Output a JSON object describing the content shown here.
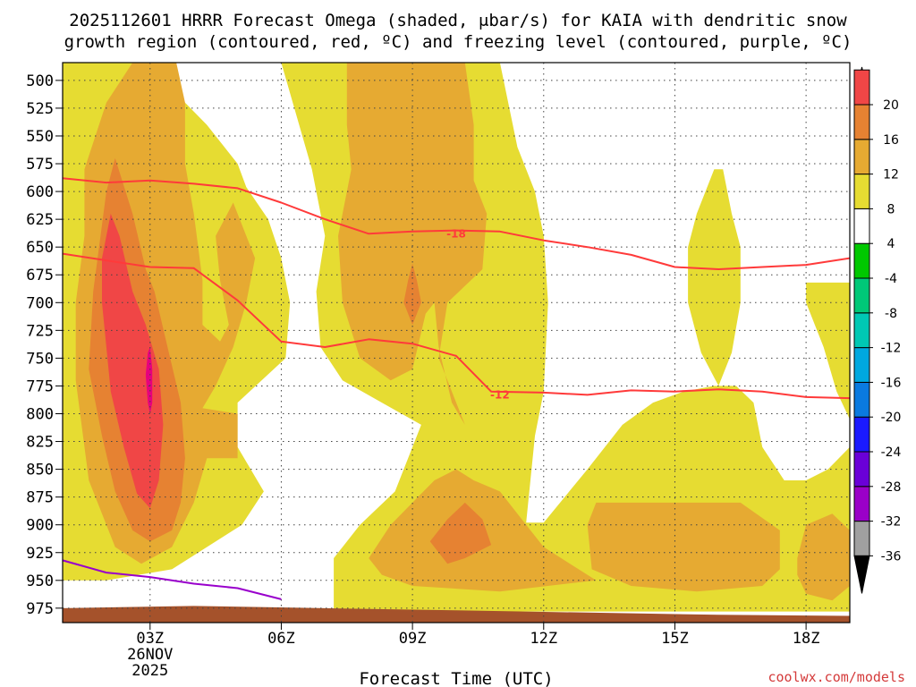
{
  "chart_data": {
    "type": "heatmap",
    "title_line1": "2025112601 HRRR Forecast Omega (shaded, ",
    "title_mu": "μ",
    "title_line1_end": "bar/s) for KAIA with dendritic snow",
    "title_line2": "growth region (contoured, red, ºC) and freezing level (contoured, purple, ºC)",
    "xlabel": "Forecast Time (UTC)",
    "x_ticks": [
      {
        "value": 3,
        "label": "03Z",
        "sub1": "26NOV",
        "sub2": "2025"
      },
      {
        "value": 6,
        "label": "06Z"
      },
      {
        "value": 9,
        "label": "09Z"
      },
      {
        "value": 12,
        "label": "12Z"
      },
      {
        "value": 15,
        "label": "15Z"
      },
      {
        "value": 18,
        "label": "18Z"
      }
    ],
    "xlim": [
      1,
      19
    ],
    "ylim": [
      988,
      484
    ],
    "y_ticks": [
      500,
      525,
      550,
      575,
      600,
      625,
      650,
      675,
      700,
      725,
      750,
      775,
      800,
      825,
      850,
      875,
      900,
      925,
      950,
      975
    ],
    "grid": true,
    "colorbar": {
      "levels": [
        -36,
        -32,
        -28,
        -24,
        -20,
        -16,
        -12,
        -8,
        -4,
        4,
        8,
        12,
        16,
        20
      ],
      "colors": [
        "#a0a0a0",
        "#9a00c8",
        "#6a00d8",
        "#1a1aff",
        "#0a7ae0",
        "#00a8e0",
        "#00c8b4",
        "#00c878",
        "#00c800",
        "#ffffff",
        "#e6dc32",
        "#e6aa32",
        "#e68232",
        "#f04646"
      ],
      "over_color": "#e6007e",
      "under_color": "#000000"
    },
    "omega_colors": {
      "4": "#e6dc32",
      "8": "#e6aa32",
      "12": "#e68232",
      "16": "#f04646",
      "20": "#e6007e"
    },
    "omega_regions": [
      {
        "level": 4,
        "points": [
          [
            1.0,
            484
          ],
          [
            2.9,
            484
          ],
          [
            4.3,
            540
          ],
          [
            5.0,
            575
          ],
          [
            5.2,
            596
          ],
          [
            5.7,
            625
          ],
          [
            6.0,
            660
          ],
          [
            6.2,
            700
          ],
          [
            6.1,
            750
          ],
          [
            5.0,
            790
          ],
          [
            5.0,
            830
          ],
          [
            5.6,
            870
          ],
          [
            5.1,
            900
          ],
          [
            3.5,
            940
          ],
          [
            2.0,
            950
          ],
          [
            1.0,
            950
          ]
        ]
      },
      {
        "level": 4,
        "points": [
          [
            6.0,
            484
          ],
          [
            11.0,
            484
          ],
          [
            11.4,
            560
          ],
          [
            11.8,
            600
          ],
          [
            12.0,
            640
          ],
          [
            12.1,
            700
          ],
          [
            12.0,
            780
          ],
          [
            11.8,
            820
          ],
          [
            11.6,
            898
          ],
          [
            12.0,
            898
          ],
          [
            13.0,
            850
          ],
          [
            13.8,
            810
          ],
          [
            14.5,
            790
          ],
          [
            15.2,
            780
          ],
          [
            15.9,
            775
          ],
          [
            16.4,
            775
          ],
          [
            16.8,
            790
          ],
          [
            17.0,
            830
          ],
          [
            17.5,
            860
          ],
          [
            18.0,
            860
          ],
          [
            18.5,
            850
          ],
          [
            19.0,
            830
          ],
          [
            19.0,
            978
          ],
          [
            7.2,
            978
          ],
          [
            7.2,
            930
          ],
          [
            7.8,
            900
          ],
          [
            8.6,
            870
          ],
          [
            9.0,
            830
          ],
          [
            9.2,
            810
          ],
          [
            8.3,
            790
          ],
          [
            7.4,
            770
          ],
          [
            6.9,
            740
          ],
          [
            6.8,
            690
          ],
          [
            7.0,
            640
          ],
          [
            6.7,
            580
          ],
          [
            6.0,
            484
          ]
        ]
      },
      {
        "level": 4,
        "points": [
          [
            15.3,
            650
          ],
          [
            15.5,
            620
          ],
          [
            15.9,
            580
          ],
          [
            16.1,
            580
          ],
          [
            16.3,
            620
          ],
          [
            16.5,
            650
          ],
          [
            16.5,
            700
          ],
          [
            16.3,
            745
          ],
          [
            16.0,
            775
          ],
          [
            15.6,
            745
          ],
          [
            15.3,
            700
          ]
        ]
      },
      {
        "level": 4,
        "points": [
          [
            18.0,
            682
          ],
          [
            19.0,
            682
          ],
          [
            19.0,
            805
          ],
          [
            18.7,
            780
          ],
          [
            18.4,
            740
          ],
          [
            18.0,
            700
          ]
        ]
      },
      {
        "level": 8,
        "points": [
          [
            1.5,
            640
          ],
          [
            1.5,
            580
          ],
          [
            2.0,
            520
          ],
          [
            2.6,
            484
          ],
          [
            3.6,
            484
          ],
          [
            3.8,
            520
          ],
          [
            3.8,
            575
          ],
          [
            4.0,
            620
          ],
          [
            4.2,
            680
          ],
          [
            4.2,
            720
          ],
          [
            4.6,
            735
          ],
          [
            4.8,
            720
          ],
          [
            4.6,
            680
          ],
          [
            4.5,
            640
          ],
          [
            4.9,
            610
          ],
          [
            5.4,
            660
          ],
          [
            5.2,
            700
          ],
          [
            4.9,
            740
          ],
          [
            4.5,
            775
          ],
          [
            4.2,
            795
          ],
          [
            5.0,
            800
          ],
          [
            5.0,
            840
          ],
          [
            4.3,
            840
          ],
          [
            4.0,
            880
          ],
          [
            3.5,
            920
          ],
          [
            2.8,
            935
          ],
          [
            2.2,
            920
          ],
          [
            1.6,
            860
          ],
          [
            1.3,
            770
          ],
          [
            1.3,
            700
          ]
        ]
      },
      {
        "level": 8,
        "points": [
          [
            7.5,
            484
          ],
          [
            10.2,
            484
          ],
          [
            10.4,
            540
          ],
          [
            10.4,
            590
          ],
          [
            10.7,
            620
          ],
          [
            10.6,
            670
          ],
          [
            9.8,
            700
          ],
          [
            9.6,
            750
          ],
          [
            10.0,
            790
          ],
          [
            10.2,
            810
          ],
          [
            9.9,
            790
          ],
          [
            9.6,
            740
          ],
          [
            9.5,
            700
          ],
          [
            9.3,
            710
          ],
          [
            9.0,
            760
          ],
          [
            8.5,
            770
          ],
          [
            7.8,
            750
          ],
          [
            7.4,
            700
          ],
          [
            7.3,
            640
          ],
          [
            7.6,
            580
          ],
          [
            7.5,
            540
          ]
        ]
      },
      {
        "level": 8,
        "points": [
          [
            8.0,
            930
          ],
          [
            8.5,
            900
          ],
          [
            9.0,
            880
          ],
          [
            9.5,
            860
          ],
          [
            10.0,
            850
          ],
          [
            10.4,
            860
          ],
          [
            11.0,
            870
          ],
          [
            11.6,
            900
          ],
          [
            12.0,
            920
          ],
          [
            12.8,
            940
          ],
          [
            13.2,
            950
          ],
          [
            11.0,
            960
          ],
          [
            9.0,
            955
          ],
          [
            8.3,
            945
          ]
        ]
      },
      {
        "level": 8,
        "points": [
          [
            13.1,
            940
          ],
          [
            13.0,
            900
          ],
          [
            13.2,
            880
          ],
          [
            14.5,
            880
          ],
          [
            15.5,
            880
          ],
          [
            16.5,
            880
          ],
          [
            17.4,
            905
          ],
          [
            17.4,
            940
          ],
          [
            17.0,
            955
          ],
          [
            15.5,
            960
          ],
          [
            14.0,
            955
          ]
        ]
      },
      {
        "level": 8,
        "points": [
          [
            17.8,
            930
          ],
          [
            18.0,
            900
          ],
          [
            18.6,
            890
          ],
          [
            19.0,
            905
          ],
          [
            19.0,
            955
          ],
          [
            18.6,
            968
          ],
          [
            18.0,
            962
          ],
          [
            17.8,
            945
          ]
        ]
      },
      {
        "level": 12,
        "points": [
          [
            1.6,
            760
          ],
          [
            1.7,
            690
          ],
          [
            2.0,
            600
          ],
          [
            2.2,
            570
          ],
          [
            2.6,
            620
          ],
          [
            2.9,
            670
          ],
          [
            3.1,
            690
          ],
          [
            3.4,
            740
          ],
          [
            3.7,
            790
          ],
          [
            3.8,
            840
          ],
          [
            3.7,
            880
          ],
          [
            3.5,
            905
          ],
          [
            3.0,
            915
          ],
          [
            2.6,
            905
          ],
          [
            2.2,
            870
          ],
          [
            1.9,
            820
          ]
        ]
      },
      {
        "level": 12,
        "points": [
          [
            8.8,
            700
          ],
          [
            8.9,
            680
          ],
          [
            9.0,
            665
          ],
          [
            9.1,
            680
          ],
          [
            9.2,
            700
          ],
          [
            9.0,
            720
          ]
        ]
      },
      {
        "level": 12,
        "points": [
          [
            9.4,
            915
          ],
          [
            9.8,
            895
          ],
          [
            10.2,
            880
          ],
          [
            10.6,
            895
          ],
          [
            10.8,
            918
          ],
          [
            10.2,
            930
          ],
          [
            9.8,
            935
          ]
        ]
      },
      {
        "level": 16,
        "points": [
          [
            1.9,
            700
          ],
          [
            1.9,
            660
          ],
          [
            2.1,
            620
          ],
          [
            2.3,
            640
          ],
          [
            2.6,
            690
          ],
          [
            2.9,
            720
          ],
          [
            3.2,
            760
          ],
          [
            3.3,
            810
          ],
          [
            3.2,
            860
          ],
          [
            3.0,
            885
          ],
          [
            2.7,
            872
          ],
          [
            2.4,
            830
          ],
          [
            2.1,
            780
          ]
        ]
      },
      {
        "level": 20,
        "points": [
          [
            2.9,
            765
          ],
          [
            2.95,
            745
          ],
          [
            3.0,
            740
          ],
          [
            3.05,
            760
          ],
          [
            3.05,
            790
          ],
          [
            3.0,
            800
          ],
          [
            2.95,
            790
          ]
        ]
      }
    ],
    "ground": {
      "color": "#a5522b",
      "points": [
        [
          1.0,
          975
        ],
        [
          4.0,
          973
        ],
        [
          7.0,
          975
        ],
        [
          10.0,
          977
        ],
        [
          13.0,
          979
        ],
        [
          16.0,
          981
        ],
        [
          19.0,
          982
        ],
        [
          19.0,
          990
        ],
        [
          1.0,
          990
        ]
      ]
    },
    "contours": [
      {
        "value": -18,
        "label": "-18",
        "color": "#ff3a3a",
        "label_at": [
          10.0,
          638
        ],
        "points": [
          [
            1.0,
            588
          ],
          [
            2.0,
            592
          ],
          [
            3.0,
            590
          ],
          [
            4.0,
            593
          ],
          [
            5.0,
            597
          ],
          [
            6.0,
            610
          ],
          [
            7.0,
            625
          ],
          [
            8.0,
            638
          ],
          [
            9.0,
            636
          ],
          [
            10.0,
            635
          ],
          [
            11.0,
            636
          ],
          [
            12.0,
            644
          ],
          [
            13.0,
            650
          ],
          [
            14.0,
            657
          ],
          [
            15.0,
            668
          ],
          [
            16.0,
            670
          ],
          [
            17.0,
            668
          ],
          [
            18.0,
            666
          ],
          [
            19.0,
            660
          ]
        ]
      },
      {
        "value": -12,
        "label": "-12",
        "color": "#ff3a3a",
        "label_at": [
          11.0,
          783
        ],
        "points": [
          [
            1.0,
            656
          ],
          [
            2.0,
            662
          ],
          [
            3.0,
            668
          ],
          [
            4.0,
            669
          ],
          [
            5.0,
            698
          ],
          [
            6.0,
            735
          ],
          [
            7.0,
            740
          ],
          [
            8.0,
            733
          ],
          [
            9.0,
            737
          ],
          [
            10.0,
            748
          ],
          [
            10.8,
            780
          ],
          [
            12.0,
            781
          ],
          [
            13.0,
            783
          ],
          [
            14.0,
            779
          ],
          [
            15.0,
            780
          ],
          [
            16.0,
            778
          ],
          [
            17.0,
            780
          ],
          [
            18.0,
            785
          ],
          [
            19.0,
            786
          ]
        ]
      },
      {
        "value": 0,
        "label": "",
        "color": "#9900cc",
        "label_at": null,
        "points": [
          [
            1.0,
            932
          ],
          [
            2.0,
            943
          ],
          [
            3.0,
            947
          ],
          [
            4.0,
            953
          ],
          [
            5.0,
            957
          ],
          [
            6.0,
            967
          ]
        ]
      }
    ]
  },
  "credit": "coolwx.com/models"
}
